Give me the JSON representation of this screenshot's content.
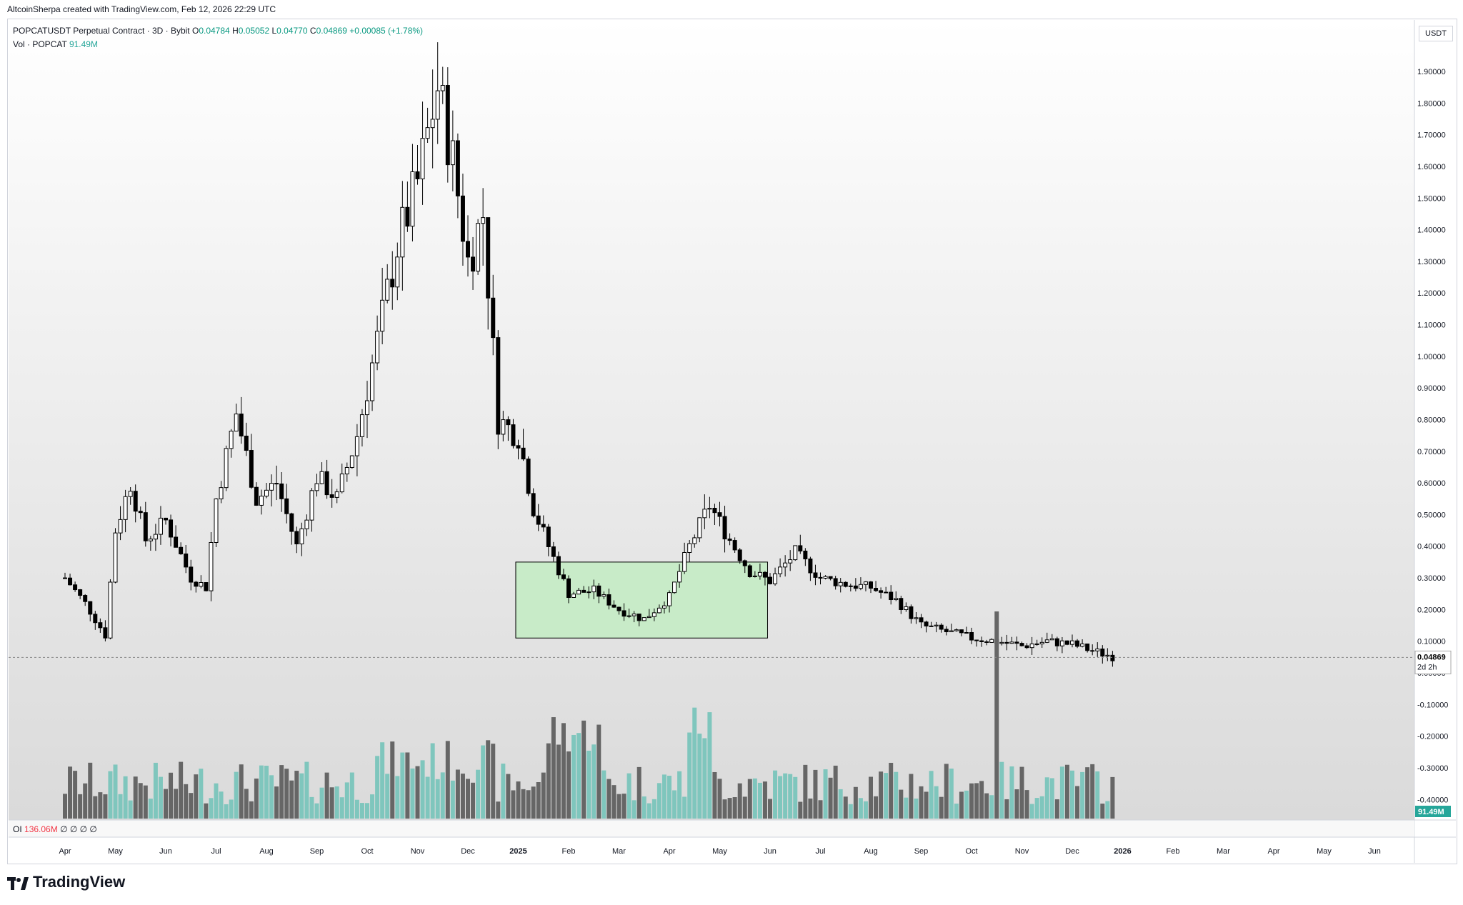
{
  "header": {
    "attribution": "AltcoinSherpa created with TradingView.com, Feb 12, 2026 22:29 UTC"
  },
  "legend": {
    "symbol": "POPCATUSDT Perpetual Contract · 3D · Bybit",
    "o_label": "O",
    "o": "0.04784",
    "h_label": "H",
    "h": "0.05052",
    "l_label": "L",
    "l": "0.04770",
    "c_label": "C",
    "c": "0.04869",
    "change": "+0.00085 (+1.78%)",
    "vol_label": "Vol · POPCAT",
    "vol_value": "91.49M"
  },
  "oi": {
    "label": "OI",
    "value": "136.06M",
    "extra": "∅ ∅ ∅ ∅"
  },
  "unit": "USDT",
  "brand": "TradingView",
  "colors": {
    "bull_candle": "#ffffff",
    "bear_candle": "#000000",
    "vol_up": "#7fc6bd",
    "vol_down": "#666666",
    "zone_fill": "#c8ebc8",
    "last_price_bg": "#ffffff",
    "vol_badge": "#26a69a"
  },
  "chart_data": {
    "type": "candlestick",
    "y_axis_labels": [
      "1.90000",
      "1.80000",
      "1.70000",
      "1.60000",
      "1.50000",
      "1.40000",
      "1.30000",
      "1.20000",
      "1.10000",
      "1.00000",
      "0.90000",
      "0.80000",
      "0.70000",
      "0.60000",
      "0.50000",
      "0.40000",
      "0.30000",
      "0.20000",
      "0.10000",
      "0.00000",
      "-0.10000",
      "-0.20000",
      "-0.30000",
      "-0.40000"
    ],
    "y_axis_values": [
      1.9,
      1.8,
      1.7,
      1.6,
      1.5,
      1.4,
      1.3,
      1.2,
      1.1,
      1.0,
      0.9,
      0.8,
      0.7,
      0.6,
      0.5,
      0.4,
      0.3,
      0.2,
      0.1,
      0.0,
      -0.1,
      -0.2,
      -0.3,
      -0.4
    ],
    "x_axis_labels": [
      "Apr",
      "May",
      "Jun",
      "Jul",
      "Aug",
      "Sep",
      "Oct",
      "Nov",
      "Dec",
      "2025",
      "Feb",
      "Mar",
      "Apr",
      "May",
      "Jun",
      "Jul",
      "Aug",
      "Sep",
      "Oct",
      "Nov",
      "Dec",
      "2026",
      "Feb",
      "Mar",
      "Apr",
      "May",
      "Jun"
    ],
    "last_price": "0.04869",
    "last_price_value": 0.04869,
    "countdown": "2d 2h",
    "volume_badge": "91.49M",
    "highlight_zone": {
      "price_top": 0.35,
      "price_bottom": 0.11,
      "from_month": "Jan 2025",
      "to_month": "May 2025"
    },
    "close_path": [
      {
        "t": 0,
        "p": 0.3
      },
      {
        "t": 0.4,
        "p": 0.22
      },
      {
        "t": 0.8,
        "p": 0.12
      },
      {
        "t": 1.0,
        "p": 0.45
      },
      {
        "t": 1.3,
        "p": 0.6
      },
      {
        "t": 1.6,
        "p": 0.42
      },
      {
        "t": 2.0,
        "p": 0.48
      },
      {
        "t": 2.5,
        "p": 0.3
      },
      {
        "t": 2.8,
        "p": 0.27
      },
      {
        "t": 3.0,
        "p": 0.55
      },
      {
        "t": 3.4,
        "p": 0.82
      },
      {
        "t": 3.8,
        "p": 0.55
      },
      {
        "t": 4.2,
        "p": 0.6
      },
      {
        "t": 4.6,
        "p": 0.4
      },
      {
        "t": 5.0,
        "p": 0.62
      },
      {
        "t": 5.4,
        "p": 0.55
      },
      {
        "t": 5.8,
        "p": 0.75
      },
      {
        "t": 6.2,
        "p": 1.05
      },
      {
        "t": 6.6,
        "p": 1.35
      },
      {
        "t": 7.0,
        "p": 1.55
      },
      {
        "t": 7.4,
        "p": 1.85
      },
      {
        "t": 7.7,
        "p": 1.62
      },
      {
        "t": 8.0,
        "p": 1.3
      },
      {
        "t": 8.3,
        "p": 1.45
      },
      {
        "t": 8.6,
        "p": 0.8
      },
      {
        "t": 9.0,
        "p": 0.75
      },
      {
        "t": 9.3,
        "p": 0.52
      },
      {
        "t": 9.6,
        "p": 0.4
      },
      {
        "t": 10.0,
        "p": 0.25
      },
      {
        "t": 10.5,
        "p": 0.26
      },
      {
        "t": 11.0,
        "p": 0.2
      },
      {
        "t": 11.5,
        "p": 0.17
      },
      {
        "t": 12.0,
        "p": 0.24
      },
      {
        "t": 12.4,
        "p": 0.4
      },
      {
        "t": 12.8,
        "p": 0.53
      },
      {
        "t": 13.2,
        "p": 0.42
      },
      {
        "t": 13.6,
        "p": 0.32
      },
      {
        "t": 14.0,
        "p": 0.29
      },
      {
        "t": 14.5,
        "p": 0.38
      },
      {
        "t": 15.0,
        "p": 0.3
      },
      {
        "t": 15.5,
        "p": 0.28
      },
      {
        "t": 16.0,
        "p": 0.27
      },
      {
        "t": 16.5,
        "p": 0.23
      },
      {
        "t": 17.0,
        "p": 0.15
      },
      {
        "t": 17.5,
        "p": 0.13
      },
      {
        "t": 18.0,
        "p": 0.11
      },
      {
        "t": 18.5,
        "p": 0.1
      },
      {
        "t": 19.0,
        "p": 0.085
      },
      {
        "t": 19.5,
        "p": 0.1
      },
      {
        "t": 20.0,
        "p": 0.09
      },
      {
        "t": 20.5,
        "p": 0.065
      },
      {
        "t": 20.9,
        "p": 0.0487
      }
    ]
  }
}
